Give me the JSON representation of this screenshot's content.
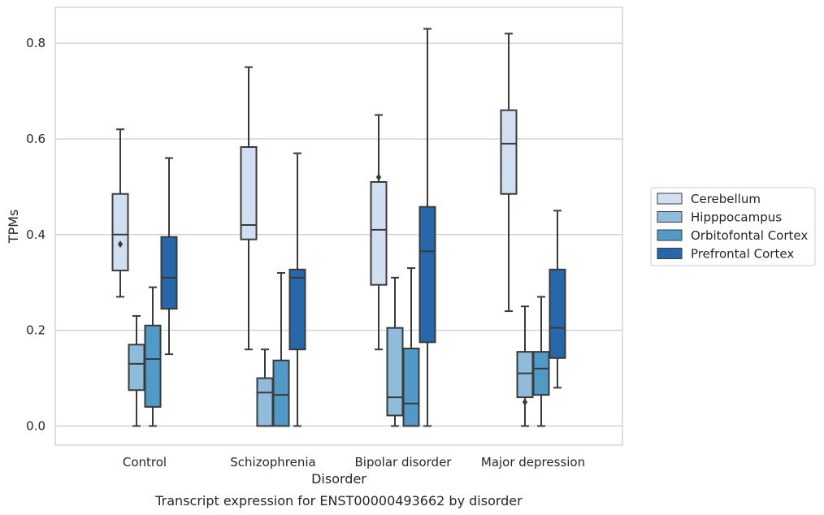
{
  "chart_data": {
    "type": "box",
    "caption": "Transcript expression for ENST00000493662 by disorder",
    "xlabel": "Disorder",
    "ylabel": "TPMs",
    "ylim": [
      -0.04,
      0.875
    ],
    "yticks": [
      0.0,
      0.2,
      0.4,
      0.6,
      0.8
    ],
    "ytick_labels": [
      "0.0",
      "0.2",
      "0.4",
      "0.6",
      "0.8"
    ],
    "grid": "horizontal",
    "legend_position": "right",
    "categories": [
      "Control",
      "Schizophrenia",
      "Bipolar disorder",
      "Major depression"
    ],
    "series": [
      {
        "name": "Cerebellum",
        "color": "#d0e0f1",
        "boxes": [
          {
            "whisker_low": 0.27,
            "q1": 0.325,
            "median": 0.4,
            "q3": 0.485,
            "whisker_high": 0.62,
            "outliers": [
              0.38
            ]
          },
          {
            "whisker_low": 0.16,
            "q1": 0.39,
            "median": 0.42,
            "q3": 0.583,
            "whisker_high": 0.75,
            "outliers": []
          },
          {
            "whisker_low": 0.16,
            "q1": 0.295,
            "median": 0.41,
            "q3": 0.51,
            "whisker_high": 0.65,
            "outliers": [
              0.52
            ]
          },
          {
            "whisker_low": 0.24,
            "q1": 0.485,
            "median": 0.59,
            "q3": 0.66,
            "whisker_high": 0.82,
            "outliers": []
          }
        ]
      },
      {
        "name": "Hipppocampus",
        "color": "#8fbcda",
        "boxes": [
          {
            "whisker_low": 0.0,
            "q1": 0.075,
            "median": 0.13,
            "q3": 0.17,
            "whisker_high": 0.23,
            "outliers": []
          },
          {
            "whisker_low": 0.0,
            "q1": 0.0,
            "median": 0.07,
            "q3": 0.1,
            "whisker_high": 0.16,
            "outliers": []
          },
          {
            "whisker_low": 0.0,
            "q1": 0.022,
            "median": 0.06,
            "q3": 0.205,
            "whisker_high": 0.31,
            "outliers": []
          },
          {
            "whisker_low": 0.0,
            "q1": 0.06,
            "median": 0.11,
            "q3": 0.155,
            "whisker_high": 0.25,
            "outliers": [
              0.05
            ]
          }
        ]
      },
      {
        "name": "Orbitofontal Cortex",
        "color": "#5199c7",
        "boxes": [
          {
            "whisker_low": 0.0,
            "q1": 0.04,
            "median": 0.14,
            "q3": 0.21,
            "whisker_high": 0.29,
            "outliers": []
          },
          {
            "whisker_low": 0.0,
            "q1": 0.0,
            "median": 0.065,
            "q3": 0.137,
            "whisker_high": 0.32,
            "outliers": []
          },
          {
            "whisker_low": 0.0,
            "q1": 0.0,
            "median": 0.047,
            "q3": 0.162,
            "whisker_high": 0.33,
            "outliers": []
          },
          {
            "whisker_low": 0.0,
            "q1": 0.065,
            "median": 0.12,
            "q3": 0.155,
            "whisker_high": 0.27,
            "outliers": []
          }
        ]
      },
      {
        "name": "Prefrontal Cortex",
        "color": "#2668aa",
        "boxes": [
          {
            "whisker_low": 0.15,
            "q1": 0.245,
            "median": 0.31,
            "q3": 0.395,
            "whisker_high": 0.56,
            "outliers": []
          },
          {
            "whisker_low": 0.0,
            "q1": 0.16,
            "median": 0.31,
            "q3": 0.327,
            "whisker_high": 0.57,
            "outliers": []
          },
          {
            "whisker_low": 0.0,
            "q1": 0.175,
            "median": 0.365,
            "q3": 0.458,
            "whisker_high": 0.83,
            "outliers": []
          },
          {
            "whisker_low": 0.08,
            "q1": 0.142,
            "median": 0.205,
            "q3": 0.327,
            "whisker_high": 0.45,
            "outliers": []
          }
        ]
      }
    ]
  }
}
